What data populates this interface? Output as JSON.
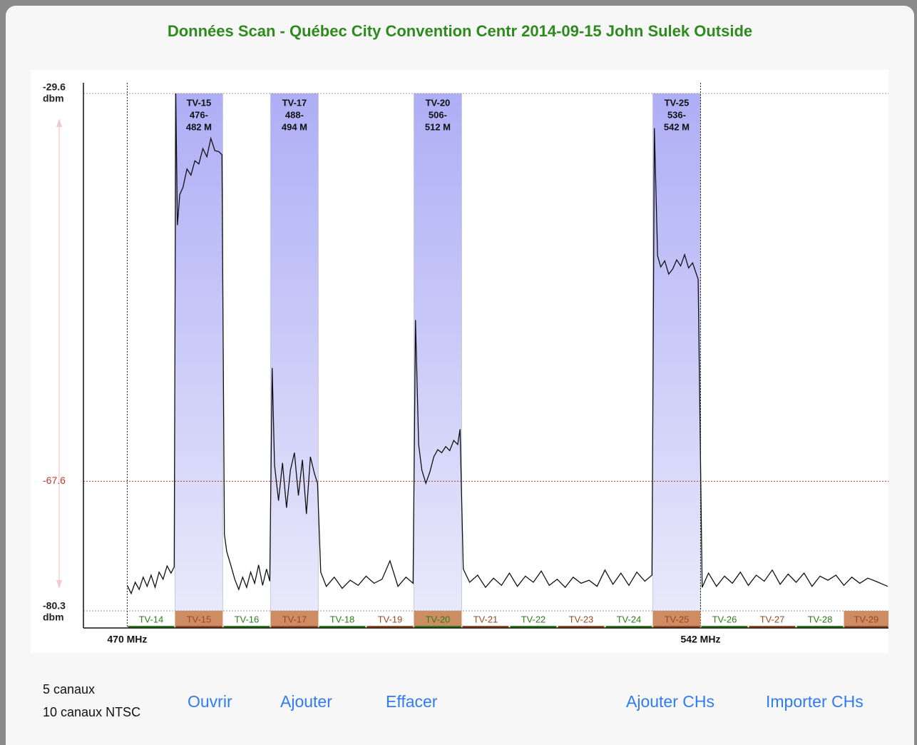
{
  "chart_data": {
    "type": "line",
    "title": "Données Scan - Québec City Convention Centr 2014-09-15 John Sulek Outside",
    "y_unit": "dbm",
    "xlim": [
      464.5,
      565.6
    ],
    "ylim": [
      -80.3,
      -29.6
    ],
    "yticks": [
      -29.6,
      -67.6,
      -80.3
    ],
    "ytick_colors": [
      "#222222",
      "#c0392b",
      "#222222"
    ],
    "xticks": [
      {
        "value": 470,
        "label": "470 MHz"
      },
      {
        "value": 542,
        "label": "542 MHz"
      }
    ],
    "line_color": "#111111",
    "x": [
      470,
      470.5,
      471,
      471.5,
      472,
      472.5,
      473,
      473.5,
      474,
      474.5,
      475,
      475.5,
      475.9,
      476.1,
      476.3,
      476.6,
      477,
      477.5,
      478,
      478.5,
      479,
      479.5,
      480,
      480.5,
      481,
      481.5,
      481.9,
      482.2,
      482.5,
      483,
      483.5,
      484,
      484.5,
      485,
      485.5,
      486,
      486.5,
      487,
      487.5,
      487.9,
      488.2,
      488.5,
      489,
      489.5,
      490,
      490.5,
      491,
      491.5,
      492,
      492.5,
      493,
      493.5,
      493.9,
      494.3,
      495,
      496,
      497,
      498,
      499,
      500,
      501,
      502,
      503,
      504,
      505,
      505.9,
      506.2,
      506.6,
      507,
      507.5,
      508,
      508.5,
      509,
      509.5,
      510,
      510.5,
      511,
      511.5,
      511.8,
      512.2,
      513,
      514,
      515,
      516,
      517,
      518,
      519,
      520,
      521,
      522,
      523,
      524,
      525,
      526,
      527,
      528,
      529,
      530,
      531,
      532,
      533,
      534,
      535,
      535.9,
      536.2,
      536.6,
      537,
      537.5,
      538,
      538.5,
      539,
      539.5,
      540,
      540.5,
      541,
      541.7,
      542.2,
      543,
      544,
      545,
      546,
      547,
      548,
      549,
      550,
      551,
      552,
      553,
      554,
      555,
      556,
      557,
      558,
      559,
      560,
      561,
      562,
      563,
      564,
      565.5
    ],
    "values": [
      -77.8,
      -78.6,
      -77.5,
      -78.2,
      -77.0,
      -77.9,
      -76.8,
      -78.0,
      -76.5,
      -77.2,
      -75.9,
      -76.6,
      -76.0,
      -29.6,
      -42.5,
      -39.5,
      -38.8,
      -37.0,
      -37.6,
      -36.2,
      -36.5,
      -35.0,
      -35.8,
      -34.0,
      -35.2,
      -35.3,
      -35.6,
      -72.8,
      -74.5,
      -75.8,
      -77.2,
      -78.2,
      -77.0,
      -78.0,
      -76.5,
      -77.6,
      -75.8,
      -77.8,
      -76.2,
      -77.4,
      -56.5,
      -66.0,
      -69.5,
      -65.8,
      -70.2,
      -66.5,
      -64.8,
      -69.0,
      -65.5,
      -70.8,
      -65.2,
      -66.8,
      -67.8,
      -76.5,
      -77.9,
      -77.0,
      -78.1,
      -77.3,
      -77.8,
      -76.9,
      -77.6,
      -77.2,
      -75.4,
      -77.9,
      -77.0,
      -77.6,
      -51.8,
      -64.0,
      -66.5,
      -67.8,
      -66.7,
      -65.2,
      -64.5,
      -64.8,
      -64.2,
      -64.6,
      -63.6,
      -64.0,
      -62.5,
      -76.2,
      -77.5,
      -76.8,
      -78.0,
      -77.1,
      -77.8,
      -76.6,
      -77.9,
      -76.9,
      -77.5,
      -76.4,
      -77.8,
      -77.2,
      -78.0,
      -77.0,
      -77.6,
      -77.3,
      -77.9,
      -76.3,
      -77.7,
      -76.6,
      -77.8,
      -76.5,
      -77.4,
      -76.8,
      -33.0,
      -45.5,
      -46.6,
      -46.0,
      -47.3,
      -46.8,
      -45.9,
      -46.5,
      -45.4,
      -46.7,
      -46.2,
      -47.8,
      -78.0,
      -76.6,
      -77.9,
      -76.9,
      -77.6,
      -76.5,
      -77.8,
      -76.8,
      -77.4,
      -76.3,
      -77.7,
      -76.7,
      -77.5,
      -76.6,
      -77.9,
      -76.9,
      -77.3,
      -76.8,
      -77.8,
      -77.0,
      -77.6,
      -77.1,
      -77.4,
      -77.9
    ],
    "highlights": [
      {
        "lines": [
          "TV-15",
          "476-",
          "482 M"
        ],
        "start": 476,
        "end": 482
      },
      {
        "lines": [
          "TV-17",
          "488-",
          "494 M"
        ],
        "start": 488,
        "end": 494
      },
      {
        "lines": [
          "TV-20",
          "506-",
          "512 M"
        ],
        "start": 506,
        "end": 512
      },
      {
        "lines": [
          "TV-25",
          "536-",
          "542 M"
        ],
        "start": 536,
        "end": 542
      }
    ],
    "channels": [
      {
        "name": "TV-14",
        "start": 470,
        "end": 476,
        "color": "#2e7d1a",
        "filled": false
      },
      {
        "name": "TV-15",
        "start": 476,
        "end": 482,
        "color": "#9a4a22",
        "filled": true
      },
      {
        "name": "TV-16",
        "start": 482,
        "end": 488,
        "color": "#2e7d1a",
        "filled": false
      },
      {
        "name": "TV-17",
        "start": 488,
        "end": 494,
        "color": "#9a4a22",
        "filled": true
      },
      {
        "name": "TV-18",
        "start": 494,
        "end": 500,
        "color": "#2e7d1a",
        "filled": false
      },
      {
        "name": "TV-19",
        "start": 500,
        "end": 506,
        "color": "#9a4a22",
        "filled": false
      },
      {
        "name": "TV-20",
        "start": 506,
        "end": 512,
        "color": "#2e7d1a",
        "filled": true
      },
      {
        "name": "TV-21",
        "start": 512,
        "end": 518,
        "color": "#9a4a22",
        "filled": false
      },
      {
        "name": "TV-22",
        "start": 518,
        "end": 524,
        "color": "#2e7d1a",
        "filled": false
      },
      {
        "name": "TV-23",
        "start": 524,
        "end": 530,
        "color": "#9a4a22",
        "filled": false
      },
      {
        "name": "TV-24",
        "start": 530,
        "end": 536,
        "color": "#2e7d1a",
        "filled": false
      },
      {
        "name": "TV-25",
        "start": 536,
        "end": 542,
        "color": "#9a4a22",
        "filled": true
      },
      {
        "name": "TV-26",
        "start": 542,
        "end": 548,
        "color": "#2e7d1a",
        "filled": false
      },
      {
        "name": "TV-27",
        "start": 548,
        "end": 554,
        "color": "#9a4a22",
        "filled": false
      },
      {
        "name": "TV-28",
        "start": 554,
        "end": 560,
        "color": "#2e7d1a",
        "filled": false
      },
      {
        "name": "TV-29",
        "start": 560,
        "end": 566,
        "color": "#9a4a22",
        "filled": true
      }
    ],
    "filled_color": "#cd8c62"
  },
  "footer": {
    "counts": [
      "5 canaux",
      "10 canaux NTSC"
    ],
    "buttons": [
      "Ouvrir",
      "Ajouter",
      "Effacer",
      "Ajouter CHs",
      "Importer CHs"
    ]
  }
}
